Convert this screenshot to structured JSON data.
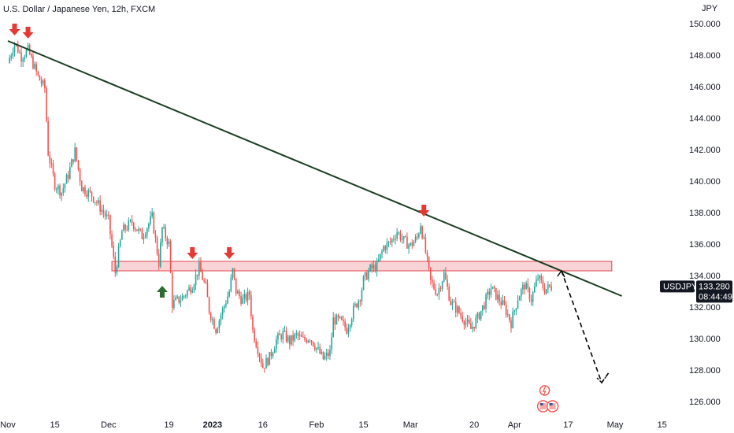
{
  "header": {
    "title": "U.S. Dollar / Japanese Yen, 12h, FXCM"
  },
  "chart_data": {
    "type": "candlestick",
    "symbol": "USDJPY",
    "currency_label": "JPY",
    "y_ticks": [
      "150.000",
      "148.000",
      "146.000",
      "144.000",
      "142.000",
      "140.000",
      "138.000",
      "136.000",
      "134.000",
      "132.000",
      "130.000",
      "128.000",
      "126.000"
    ],
    "ylim": [
      125.2,
      150.8
    ],
    "x_ticks": [
      {
        "label": "Nov",
        "day": 0
      },
      {
        "label": "15",
        "day": 14
      },
      {
        "label": "Dec",
        "day": 30
      },
      {
        "label": "19",
        "day": 48
      },
      {
        "label": "2023",
        "day": 61,
        "bold": true
      },
      {
        "label": "16",
        "day": 76
      },
      {
        "label": "Feb",
        "day": 92
      },
      {
        "label": "15",
        "day": 106
      },
      {
        "label": "Mar",
        "day": 120
      },
      {
        "label": "20",
        "day": 139
      },
      {
        "label": "Apr",
        "day": 151
      },
      {
        "label": "17",
        "day": 167
      },
      {
        "label": "May",
        "day": 181
      },
      {
        "label": "15",
        "day": 195
      }
    ],
    "current_price": {
      "label": "USDJPY",
      "value": "133.280",
      "countdown": "08:44:49"
    },
    "path_points": [
      [
        0,
        147.5
      ],
      [
        2,
        148.8
      ],
      [
        4,
        147.9
      ],
      [
        6,
        148.3
      ],
      [
        9,
        146.6
      ],
      [
        11,
        145.9
      ],
      [
        12,
        141.8
      ],
      [
        14,
        139.8
      ],
      [
        16,
        139.3
      ],
      [
        18,
        140.4
      ],
      [
        20,
        141.9
      ],
      [
        22,
        139.6
      ],
      [
        25,
        139.1
      ],
      [
        27,
        138.5
      ],
      [
        30,
        137.5
      ],
      [
        32,
        134.2
      ],
      [
        34,
        136.8
      ],
      [
        37,
        137.4
      ],
      [
        40,
        136.5
      ],
      [
        43,
        137.7
      ],
      [
        45,
        134.8
      ],
      [
        46,
        137.0
      ],
      [
        48,
        136.0
      ],
      [
        49,
        132.2
      ],
      [
        52,
        132.6
      ],
      [
        55,
        133.4
      ],
      [
        57,
        134.5
      ],
      [
        59,
        133.2
      ],
      [
        60,
        131.8
      ],
      [
        62,
        130.6
      ],
      [
        64,
        131.8
      ],
      [
        66,
        133.0
      ],
      [
        67,
        134.3
      ],
      [
        68,
        133.0
      ],
      [
        70,
        132.4
      ],
      [
        72,
        132.8
      ],
      [
        73,
        130.5
      ],
      [
        75,
        129.0
      ],
      [
        76,
        128.2
      ],
      [
        78,
        128.8
      ],
      [
        80,
        129.9
      ],
      [
        82,
        130.3
      ],
      [
        84,
        129.8
      ],
      [
        86,
        130.2
      ],
      [
        88,
        129.9
      ],
      [
        90,
        130.1
      ],
      [
        92,
        129.4
      ],
      [
        94,
        128.7
      ],
      [
        96,
        129.1
      ],
      [
        97,
        131.2
      ],
      [
        99,
        131.1
      ],
      [
        101,
        130.6
      ],
      [
        103,
        131.8
      ],
      [
        105,
        132.7
      ],
      [
        106,
        133.7
      ],
      [
        108,
        134.4
      ],
      [
        110,
        134.6
      ],
      [
        112,
        135.8
      ],
      [
        114,
        136.1
      ],
      [
        116,
        136.8
      ],
      [
        118,
        136.2
      ],
      [
        120,
        135.9
      ],
      [
        122,
        136.4
      ],
      [
        123,
        137.3
      ],
      [
        124,
        136.1
      ],
      [
        126,
        133.6
      ],
      [
        128,
        132.9
      ],
      [
        130,
        134.1
      ],
      [
        132,
        132.3
      ],
      [
        134,
        131.8
      ],
      [
        136,
        131.2
      ],
      [
        138,
        130.6
      ],
      [
        140,
        131.3
      ],
      [
        142,
        132.2
      ],
      [
        144,
        133.2
      ],
      [
        146,
        132.6
      ],
      [
        148,
        132.0
      ],
      [
        150,
        131.0
      ],
      [
        152,
        132.6
      ],
      [
        154,
        133.4
      ],
      [
        156,
        132.5
      ],
      [
        158,
        133.9
      ],
      [
        160,
        133.1
      ],
      [
        162,
        133.3
      ]
    ],
    "trendline": {
      "from": [
        0,
        148.9
      ],
      "to": [
        183,
        132.7
      ]
    },
    "resistance_zone": {
      "y_low": 134.3,
      "y_high": 134.9,
      "day_start": 31,
      "day_end": 180
    },
    "projection": [
      [
        165,
        134.3
      ],
      [
        177,
        127.2
      ],
      [
        179,
        127.8
      ]
    ],
    "down_arrows": [
      [
        2,
        149.5
      ],
      [
        6,
        149.3
      ],
      [
        55,
        135.3
      ],
      [
        66,
        135.3
      ],
      [
        124,
        138.0
      ]
    ],
    "up_arrows": [
      [
        46,
        133.1
      ]
    ],
    "colors": {
      "up": "#26a69a",
      "down": "#ef5350",
      "trendline": "#1b3d22",
      "zone_fill": "#f7c6c9",
      "zone_border": "#e0434d",
      "arrow_down": "#e53935",
      "arrow_up": "#2e6b30",
      "axis_text": "#131722"
    },
    "icons": [
      "lightning-event-icon",
      "us-flag-event-icon",
      "us-flag-event-icon"
    ]
  }
}
